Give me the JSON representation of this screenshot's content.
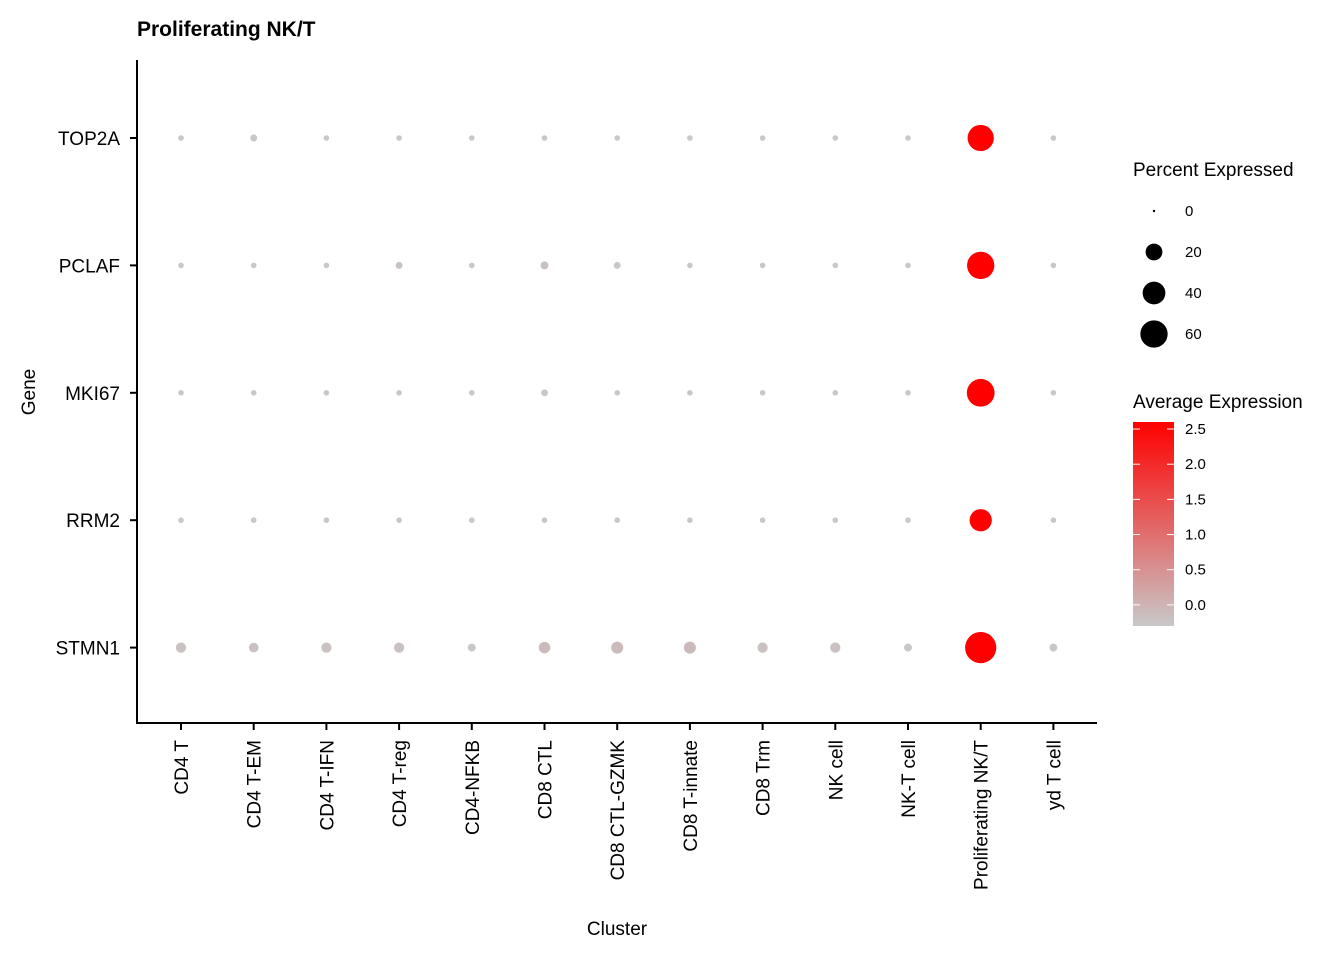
{
  "chart_data": {
    "type": "dotplot",
    "title": "Proliferating NK/T",
    "xlabel": "Cluster",
    "ylabel": "Gene",
    "categories": [
      "CD4 T",
      "CD4 T-EM",
      "CD4 T-IFN",
      "CD4 T-reg",
      "CD4-NFKB",
      "CD8 CTL",
      "CD8 CTL-GZMK",
      "CD8 T-innate",
      "CD8 Trm",
      "NK cell",
      "NK-T cell",
      "Proliferating NK/T",
      "yd T cell"
    ],
    "genes": [
      "TOP2A",
      "PCLAF",
      "MKI67",
      "RRM2",
      "STMN1"
    ],
    "percent_expressed": {
      "TOP2A": [
        1,
        2,
        1,
        1,
        1,
        1,
        1,
        1,
        1,
        1,
        1,
        55,
        1
      ],
      "PCLAF": [
        1,
        1,
        1,
        2,
        1,
        3,
        2,
        1,
        1,
        1,
        1,
        60,
        1
      ],
      "MKI67": [
        1,
        1,
        1,
        1,
        1,
        2,
        1,
        1,
        1,
        1,
        1,
        62,
        1
      ],
      "RRM2": [
        1,
        1,
        1,
        1,
        1,
        1,
        1,
        1,
        1,
        1,
        1,
        38,
        1
      ],
      "STMN1": [
        6,
        5,
        6,
        6,
        3,
        8,
        9,
        9,
        6,
        6,
        3,
        80,
        3
      ]
    },
    "average_expression": {
      "TOP2A": [
        -0.3,
        -0.3,
        -0.3,
        -0.3,
        -0.3,
        -0.3,
        -0.3,
        -0.3,
        -0.3,
        -0.3,
        -0.3,
        2.6,
        -0.3
      ],
      "PCLAF": [
        -0.3,
        -0.3,
        -0.3,
        -0.2,
        -0.3,
        -0.2,
        -0.3,
        -0.3,
        -0.3,
        -0.3,
        -0.3,
        2.6,
        -0.3
      ],
      "MKI67": [
        -0.3,
        -0.3,
        -0.3,
        -0.3,
        -0.3,
        -0.3,
        -0.3,
        -0.3,
        -0.3,
        -0.3,
        -0.3,
        2.6,
        -0.3
      ],
      "RRM2": [
        -0.3,
        -0.3,
        -0.3,
        -0.3,
        -0.3,
        -0.3,
        -0.3,
        -0.3,
        -0.3,
        -0.3,
        -0.3,
        2.6,
        -0.3
      ],
      "STMN1": [
        -0.2,
        -0.2,
        -0.2,
        -0.2,
        -0.3,
        -0.1,
        -0.1,
        -0.1,
        -0.2,
        -0.2,
        -0.3,
        2.6,
        -0.3
      ]
    },
    "size_legend": {
      "title": "Percent Expressed",
      "breaks": [
        0,
        20,
        40,
        60
      ],
      "labels": [
        "0",
        "20",
        "40",
        "60"
      ]
    },
    "color_legend": {
      "title": "Average Expression",
      "min": -0.3,
      "max": 2.6,
      "breaks": [
        0.0,
        0.5,
        1.0,
        1.5,
        2.0,
        2.5
      ],
      "labels": [
        "0.0",
        "0.5",
        "1.0",
        "1.5",
        "2.0",
        "2.5"
      ],
      "low_color": "#c8c8c8",
      "high_color": "#ff0000"
    },
    "grid": false,
    "legend_position": "right"
  }
}
